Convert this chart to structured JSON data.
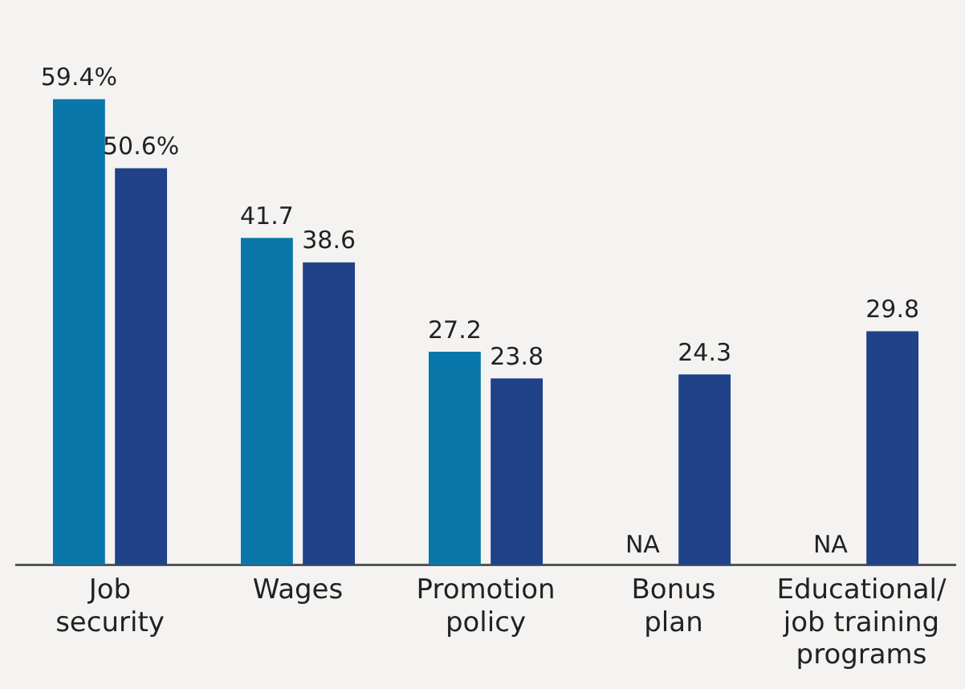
{
  "chart_data": {
    "type": "bar",
    "categories": [
      "Job\nsecurity",
      "Wages",
      "Promotion\npolicy",
      "Bonus\nplan",
      "Educational/\njob training\nprograms"
    ],
    "series": [
      {
        "color": "#0a77aa",
        "values": [
          59.4,
          41.7,
          27.2,
          null,
          null
        ],
        "value_labels": [
          "59.4%",
          "41.7",
          "27.2",
          "NA",
          "NA"
        ]
      },
      {
        "color": "#1f4289",
        "values": [
          50.6,
          38.6,
          23.8,
          24.3,
          29.8
        ],
        "value_labels": [
          "50.6%",
          "38.6",
          "23.8",
          "24.3",
          "29.8"
        ]
      }
    ],
    "legend": false,
    "grid": false
  }
}
